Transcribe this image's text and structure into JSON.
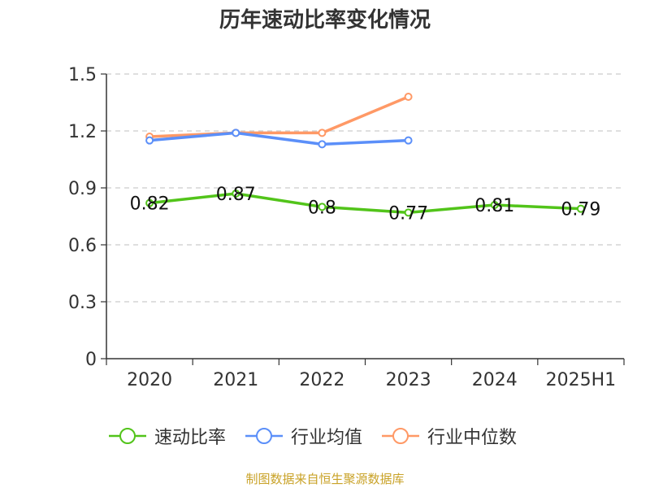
{
  "chart_data": {
    "type": "line",
    "title": "历年速动比率变化情况",
    "categories": [
      "2020",
      "2021",
      "2022",
      "2023",
      "2024",
      "2025H1"
    ],
    "y_ticks": [
      "0",
      "0.3",
      "0.6",
      "0.9",
      "1.2",
      "1.5"
    ],
    "ylim": [
      0,
      1.5
    ],
    "grid": true,
    "legend_position": "bottom",
    "series": [
      {
        "name": "速动比率",
        "color": "#52c41a",
        "values": [
          0.82,
          0.87,
          0.8,
          0.77,
          0.81,
          0.79
        ],
        "labels": [
          "0.82",
          "0.87",
          "0.8",
          "0.77",
          "0.81",
          "0.79"
        ]
      },
      {
        "name": "行业均值",
        "color": "#5b8ff9",
        "values": [
          1.15,
          1.19,
          1.13,
          1.15,
          null,
          null
        ]
      },
      {
        "name": "行业中位数",
        "color": "#ff9966",
        "values": [
          1.17,
          1.19,
          1.19,
          1.38,
          null,
          null
        ]
      }
    ]
  },
  "footer": {
    "source": "制图数据来自恒生聚源数据库"
  }
}
